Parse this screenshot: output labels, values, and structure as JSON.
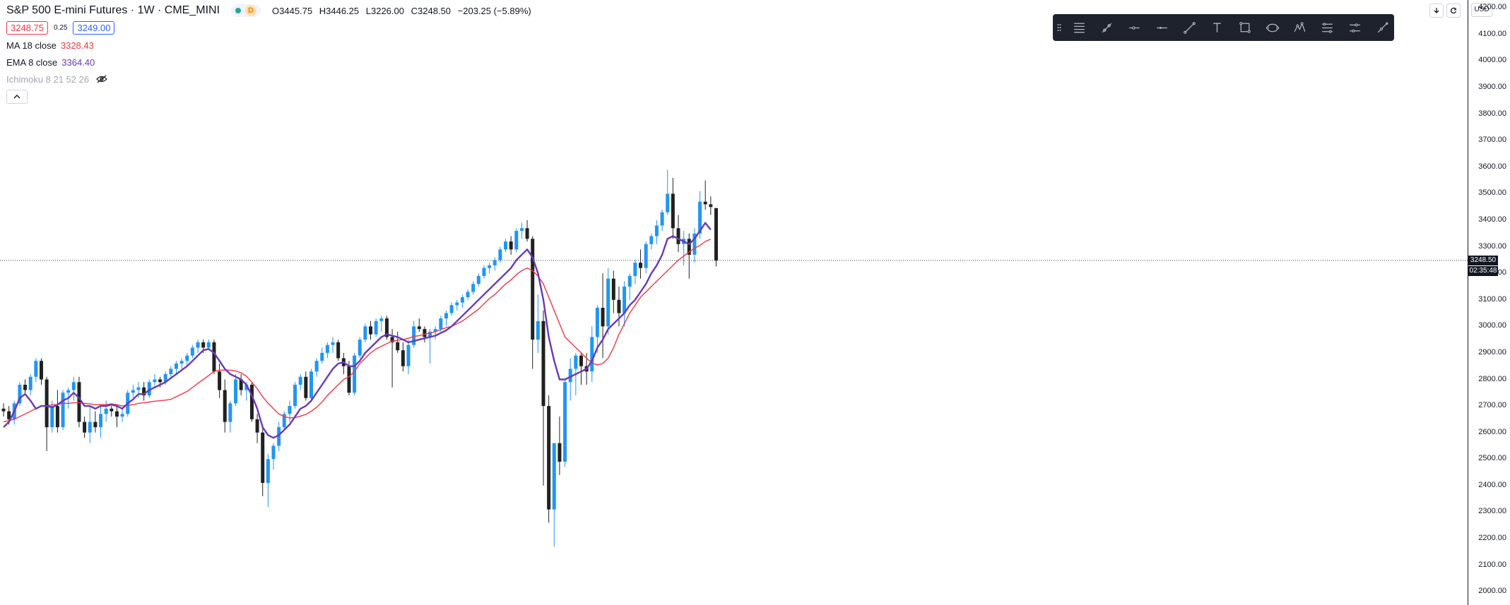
{
  "header": {
    "symbol_title": "S&P 500 E-mini Futures",
    "interval": "1W",
    "exchange": "CME_MINI",
    "delay_badge": "D",
    "ohlc": {
      "open": "O3445.75",
      "high": "H3446.25",
      "low": "L3226.00",
      "close": "C3248.50",
      "change": "−203.25 (−5.89%)"
    },
    "bid": "3248.75",
    "spread": "0.25",
    "ask": "3249.00"
  },
  "indicators": [
    {
      "name": "MA 18 close",
      "value": "3328.43",
      "color": "#f23645"
    },
    {
      "name": "EMA 8 close",
      "value": "3364.40",
      "color": "#673ab7"
    },
    {
      "name": "Ichimoku 8 21 52 26",
      "value": ""
    }
  ],
  "price_axis": {
    "currency": "USD",
    "last_price_tag": "3248.50",
    "countdown_tag": "02:35:48"
  },
  "toolbar": {
    "tools": [
      "horizontal-lines-icon",
      "pen-tool-icon",
      "horizontal-ray-icon",
      "horizontal-line-icon",
      "trend-line-icon",
      "text-icon",
      "rectangle-icon",
      "ellipse-icon",
      "pattern-icon",
      "fib-retracement-icon",
      "parallel-channel-icon",
      "brush-icon"
    ]
  },
  "colors": {
    "up": "#2196f3",
    "down": "#212121",
    "ma": "#f23645",
    "ema": "#673ab7",
    "grid": "#ffffff",
    "text": "#131722"
  },
  "chart_data": {
    "type": "candlestick",
    "interval": "1W",
    "ylim": [
      1950,
      4230
    ],
    "y_ticks": [
      2000,
      2100,
      2200,
      2300,
      2400,
      2500,
      2600,
      2700,
      2800,
      2900,
      3000,
      3100,
      3200,
      3300,
      3400,
      3500,
      3600,
      3700,
      3800,
      3900,
      4000,
      4100,
      4200
    ],
    "y_tick_labels": [
      "2000.00",
      "2100.00",
      "2200.00",
      "2300.00",
      "2400.00",
      "2500.00",
      "2600.00",
      "2700.00",
      "2800.00",
      "2900.00",
      "3000.00",
      "3100.00",
      "3200.00",
      "3300.00",
      "3400.00",
      "3500.00",
      "3600.00",
      "3700.00",
      "3800.00",
      "3900.00",
      "4000.00",
      "4100.00",
      "4200.00"
    ],
    "last_price": 3248.5,
    "candles": [
      [
        2690,
        2710,
        2660,
        2680
      ],
      [
        2680,
        2700,
        2630,
        2650
      ],
      [
        2650,
        2720,
        2630,
        2710
      ],
      [
        2710,
        2790,
        2700,
        2780
      ],
      [
        2780,
        2800,
        2740,
        2760
      ],
      [
        2760,
        2820,
        2740,
        2810
      ],
      [
        2810,
        2880,
        2790,
        2870
      ],
      [
        2870,
        2880,
        2780,
        2800
      ],
      [
        2800,
        2810,
        2530,
        2620
      ],
      [
        2620,
        2720,
        2600,
        2700
      ],
      [
        2700,
        2760,
        2600,
        2620
      ],
      [
        2620,
        2760,
        2610,
        2750
      ],
      [
        2750,
        2770,
        2690,
        2760
      ],
      [
        2760,
        2810,
        2720,
        2790
      ],
      [
        2790,
        2810,
        2620,
        2640
      ],
      [
        2640,
        2660,
        2580,
        2600
      ],
      [
        2600,
        2700,
        2560,
        2640
      ],
      [
        2640,
        2680,
        2600,
        2620
      ],
      [
        2620,
        2700,
        2580,
        2670
      ],
      [
        2670,
        2720,
        2640,
        2690
      ],
      [
        2690,
        2700,
        2660,
        2680
      ],
      [
        2680,
        2700,
        2620,
        2660
      ],
      [
        2660,
        2690,
        2640,
        2670
      ],
      [
        2670,
        2760,
        2660,
        2750
      ],
      [
        2750,
        2780,
        2730,
        2760
      ],
      [
        2760,
        2790,
        2730,
        2770
      ],
      [
        2770,
        2790,
        2720,
        2740
      ],
      [
        2740,
        2800,
        2730,
        2790
      ],
      [
        2790,
        2820,
        2770,
        2800
      ],
      [
        2800,
        2810,
        2770,
        2790
      ],
      [
        2790,
        2830,
        2780,
        2820
      ],
      [
        2820,
        2850,
        2800,
        2840
      ],
      [
        2840,
        2870,
        2820,
        2860
      ],
      [
        2860,
        2880,
        2840,
        2870
      ],
      [
        2870,
        2900,
        2850,
        2890
      ],
      [
        2890,
        2930,
        2880,
        2920
      ],
      [
        2920,
        2950,
        2900,
        2940
      ],
      [
        2940,
        2950,
        2900,
        2920
      ],
      [
        2920,
        2950,
        2910,
        2940
      ],
      [
        2940,
        2950,
        2820,
        2830
      ],
      [
        2830,
        2860,
        2730,
        2760
      ],
      [
        2760,
        2800,
        2600,
        2640
      ],
      [
        2640,
        2720,
        2600,
        2710
      ],
      [
        2710,
        2820,
        2700,
        2800
      ],
      [
        2800,
        2820,
        2740,
        2760
      ],
      [
        2760,
        2790,
        2720,
        2780
      ],
      [
        2780,
        2790,
        2640,
        2650
      ],
      [
        2650,
        2670,
        2560,
        2600
      ],
      [
        2600,
        2630,
        2360,
        2410
      ],
      [
        2410,
        2520,
        2320,
        2500
      ],
      [
        2500,
        2560,
        2460,
        2550
      ],
      [
        2550,
        2640,
        2530,
        2620
      ],
      [
        2620,
        2680,
        2610,
        2670
      ],
      [
        2670,
        2720,
        2640,
        2700
      ],
      [
        2700,
        2790,
        2690,
        2780
      ],
      [
        2780,
        2820,
        2760,
        2810
      ],
      [
        2810,
        2830,
        2720,
        2730
      ],
      [
        2730,
        2840,
        2720,
        2830
      ],
      [
        2830,
        2880,
        2810,
        2870
      ],
      [
        2870,
        2920,
        2860,
        2900
      ],
      [
        2900,
        2940,
        2880,
        2930
      ],
      [
        2930,
        2960,
        2900,
        2940
      ],
      [
        2940,
        2950,
        2870,
        2880
      ],
      [
        2880,
        2900,
        2820,
        2850
      ],
      [
        2850,
        2870,
        2740,
        2750
      ],
      [
        2750,
        2900,
        2740,
        2890
      ],
      [
        2890,
        2960,
        2880,
        2950
      ],
      [
        2950,
        3010,
        2940,
        3000
      ],
      [
        3000,
        3020,
        2950,
        2970
      ],
      [
        2970,
        3030,
        2960,
        3020
      ],
      [
        3020,
        3040,
        2980,
        3030
      ],
      [
        3030,
        3040,
        2950,
        2960
      ],
      [
        2960,
        2990,
        2770,
        2940
      ],
      [
        2940,
        2980,
        2900,
        2910
      ],
      [
        2910,
        2940,
        2830,
        2850
      ],
      [
        2850,
        2950,
        2820,
        2930
      ],
      [
        2930,
        3020,
        2920,
        3000
      ],
      [
        3000,
        3030,
        2980,
        2990
      ],
      [
        2990,
        3000,
        2940,
        2960
      ],
      [
        2960,
        2990,
        2860,
        2980
      ],
      [
        2980,
        3000,
        2950,
        2990
      ],
      [
        2990,
        3040,
        2980,
        3030
      ],
      [
        3030,
        3060,
        3000,
        3050
      ],
      [
        3050,
        3090,
        3040,
        3080
      ],
      [
        3080,
        3100,
        3060,
        3090
      ],
      [
        3090,
        3120,
        3070,
        3110
      ],
      [
        3110,
        3140,
        3100,
        3130
      ],
      [
        3130,
        3170,
        3120,
        3160
      ],
      [
        3160,
        3200,
        3150,
        3190
      ],
      [
        3190,
        3230,
        3180,
        3220
      ],
      [
        3220,
        3240,
        3200,
        3230
      ],
      [
        3230,
        3260,
        3210,
        3250
      ],
      [
        3250,
        3300,
        3240,
        3290
      ],
      [
        3290,
        3330,
        3280,
        3320
      ],
      [
        3320,
        3340,
        3270,
        3290
      ],
      [
        3290,
        3370,
        3280,
        3360
      ],
      [
        3360,
        3390,
        3330,
        3370
      ],
      [
        3370,
        3400,
        3320,
        3330
      ],
      [
        3330,
        3340,
        2840,
        2950
      ],
      [
        2950,
        3120,
        2900,
        3020
      ],
      [
        3020,
        3060,
        2400,
        2700
      ],
      [
        2700,
        2740,
        2260,
        2310
      ],
      [
        2310,
        2560,
        2170,
        2560
      ],
      [
        2560,
        2660,
        2440,
        2490
      ],
      [
        2490,
        2800,
        2470,
        2790
      ],
      [
        2790,
        2880,
        2720,
        2840
      ],
      [
        2840,
        2900,
        2740,
        2890
      ],
      [
        2890,
        2900,
        2780,
        2850
      ],
      [
        2850,
        2900,
        2780,
        2830
      ],
      [
        2830,
        3000,
        2790,
        2960
      ],
      [
        2960,
        3080,
        2900,
        3070
      ],
      [
        3070,
        3200,
        2880,
        3000
      ],
      [
        3000,
        3220,
        2970,
        3180
      ],
      [
        3180,
        3210,
        3050,
        3100
      ],
      [
        3100,
        3150,
        3000,
        3050
      ],
      [
        3050,
        3170,
        3000,
        3150
      ],
      [
        3150,
        3200,
        3100,
        3190
      ],
      [
        3190,
        3250,
        3160,
        3240
      ],
      [
        3240,
        3290,
        3180,
        3220
      ],
      [
        3220,
        3320,
        3200,
        3310
      ],
      [
        3310,
        3350,
        3290,
        3340
      ],
      [
        3340,
        3400,
        3310,
        3380
      ],
      [
        3380,
        3440,
        3360,
        3430
      ],
      [
        3430,
        3590,
        3420,
        3500
      ],
      [
        3500,
        3560,
        3330,
        3370
      ],
      [
        3370,
        3420,
        3280,
        3310
      ],
      [
        3310,
        3360,
        3230,
        3330
      ],
      [
        3330,
        3350,
        3180,
        3270
      ],
      [
        3270,
        3370,
        3240,
        3350
      ],
      [
        3350,
        3510,
        3330,
        3470
      ],
      [
        3470,
        3550,
        3440,
        3460
      ],
      [
        3460,
        3490,
        3420,
        3450
      ],
      [
        3445.75,
        3446.25,
        3226,
        3248.5
      ]
    ],
    "series": [
      {
        "name": "MA 18 close"
      },
      {
        "name": "EMA 8 close"
      }
    ],
    "ma18": [
      2640,
      2645,
      2650,
      2660,
      2670,
      2680,
      2690,
      2700,
      2700,
      2705,
      2705,
      2710,
      2710,
      2712,
      2712,
      2710,
      2708,
      2705,
      2705,
      2705,
      2708,
      2705,
      2700,
      2702,
      2705,
      2710,
      2712,
      2715,
      2718,
      2720,
      2722,
      2725,
      2735,
      2745,
      2755,
      2770,
      2785,
      2800,
      2815,
      2830,
      2835,
      2835,
      2835,
      2832,
      2825,
      2812,
      2790,
      2765,
      2735,
      2710,
      2690,
      2670,
      2660,
      2655,
      2656,
      2662,
      2668,
      2680,
      2695,
      2715,
      2740,
      2760,
      2780,
      2800,
      2810,
      2830,
      2860,
      2880,
      2900,
      2915,
      2925,
      2935,
      2945,
      2948,
      2950,
      2955,
      2962,
      2965,
      2970,
      2975,
      2980,
      2988,
      2995,
      3000,
      3010,
      3020,
      3035,
      3050,
      3065,
      3085,
      3105,
      3120,
      3140,
      3160,
      3175,
      3195,
      3210,
      3220,
      3210,
      3190,
      3160,
      3110,
      3060,
      3010,
      2960,
      2940,
      2920,
      2900,
      2880,
      2862,
      2855,
      2860,
      2880,
      2920,
      2970,
      3010,
      3050,
      3080,
      3110,
      3130,
      3150,
      3170,
      3190,
      3210,
      3230,
      3250,
      3265,
      3280,
      3295,
      3305,
      3320,
      3328.43
    ],
    "ema8": [
      2620,
      2640,
      2680,
      2730,
      2745,
      2720,
      2690,
      2700,
      2700,
      2695,
      2705,
      2720,
      2730,
      2750,
      2730,
      2700,
      2700,
      2690,
      2700,
      2700,
      2705,
      2700,
      2690,
      2710,
      2725,
      2745,
      2745,
      2760,
      2770,
      2780,
      2790,
      2805,
      2820,
      2835,
      2850,
      2870,
      2890,
      2910,
      2915,
      2900,
      2870,
      2840,
      2820,
      2810,
      2800,
      2780,
      2740,
      2690,
      2620,
      2590,
      2580,
      2590,
      2610,
      2630,
      2660,
      2690,
      2700,
      2720,
      2750,
      2780,
      2810,
      2840,
      2860,
      2865,
      2850,
      2850,
      2870,
      2900,
      2920,
      2940,
      2960,
      2970,
      2965,
      2960,
      2950,
      2940,
      2945,
      2950,
      2955,
      2960,
      2965,
      2975,
      2985,
      3000,
      3020,
      3040,
      3060,
      3080,
      3100,
      3120,
      3140,
      3160,
      3180,
      3200,
      3220,
      3250,
      3270,
      3290,
      3260,
      3200,
      3100,
      2960,
      2870,
      2800,
      2800,
      2810,
      2820,
      2830,
      2840,
      2870,
      2920,
      2950,
      2990,
      3010,
      3030,
      3050,
      3080,
      3100,
      3130,
      3160,
      3200,
      3230,
      3270,
      3330,
      3340,
      3330,
      3320,
      3310,
      3330,
      3360,
      3390,
      3364.4
    ]
  }
}
